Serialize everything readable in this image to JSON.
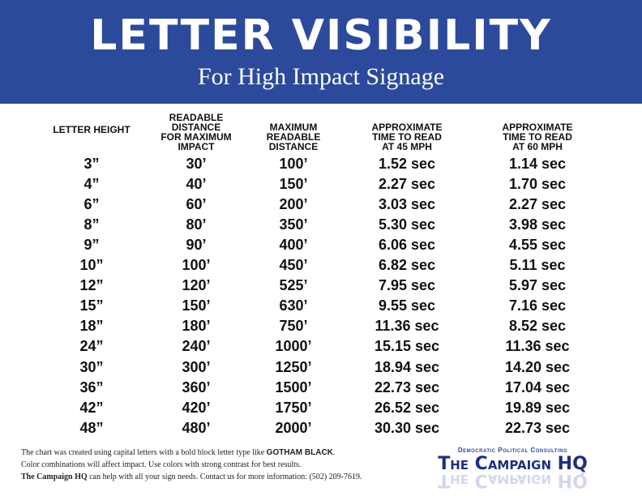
{
  "header": {
    "title": "LETTER VISIBILITY",
    "subtitle": "For High Impact Signage"
  },
  "table": {
    "columns": [
      [
        "LETTER HEIGHT"
      ],
      [
        "READABLE",
        "DISTANCE",
        "FOR MAXIMUM",
        "IMPACT"
      ],
      [
        "MAXIMUM",
        "READABLE",
        "DISTANCE"
      ],
      [
        "APPROXIMATE",
        "TIME TO READ",
        "AT 45 MPH"
      ],
      [
        "APPROXIMATE",
        "TIME TO READ",
        "AT 60 MPH"
      ]
    ],
    "rows": [
      [
        "3”",
        "30’",
        "100’",
        "1.52 sec",
        "1.14 sec"
      ],
      [
        "4”",
        "40’",
        "150’",
        "2.27 sec",
        "1.70 sec"
      ],
      [
        "6”",
        "60’",
        "200’",
        "3.03 sec",
        "2.27 sec"
      ],
      [
        "8”",
        "80’",
        "350’",
        "5.30 sec",
        "3.98 sec"
      ],
      [
        "9”",
        "90’",
        "400’",
        "6.06 sec",
        "4.55 sec"
      ],
      [
        "10”",
        "100’",
        "450’",
        "6.82 sec",
        "5.11 sec"
      ],
      [
        "12”",
        "120’",
        "525’",
        "7.95 sec",
        "5.97 sec"
      ],
      [
        "15”",
        "150’",
        "630’",
        "9.55 sec",
        "7.16 sec"
      ],
      [
        "18”",
        "180’",
        "750’",
        "11.36 sec",
        "8.52 sec"
      ],
      [
        "24”",
        "240’",
        "1000’",
        "15.15 sec",
        "11.36 sec"
      ],
      [
        "30”",
        "300’",
        "1250’",
        "18.94 sec",
        "14.20 sec"
      ],
      [
        "36”",
        "360’",
        "1500’",
        "22.73 sec",
        "17.04 sec"
      ],
      [
        "42”",
        "420’",
        "1750’",
        "26.52 sec",
        "19.89 sec"
      ],
      [
        "48”",
        "480’",
        "2000’",
        "30.30 sec",
        "22.73 sec"
      ]
    ]
  },
  "footer": {
    "lines": [
      [
        {
          "text": "The chart was created using capital letters with a bold block letter type like "
        },
        {
          "text": "GOTHAM BLACK",
          "strong": true
        },
        {
          "text": "."
        }
      ],
      [
        {
          "text": "Color combinations will affect impact. Use colors with strong contrast for best results."
        }
      ],
      [
        {
          "text": "The Campaign HQ",
          "strong": true
        },
        {
          "text": " can help with all your sign needs. Contact us for more information: (502) 209-7619."
        }
      ]
    ]
  },
  "logo": {
    "tagline": "Democratic Political Consulting",
    "name": "The Campaign HQ"
  }
}
